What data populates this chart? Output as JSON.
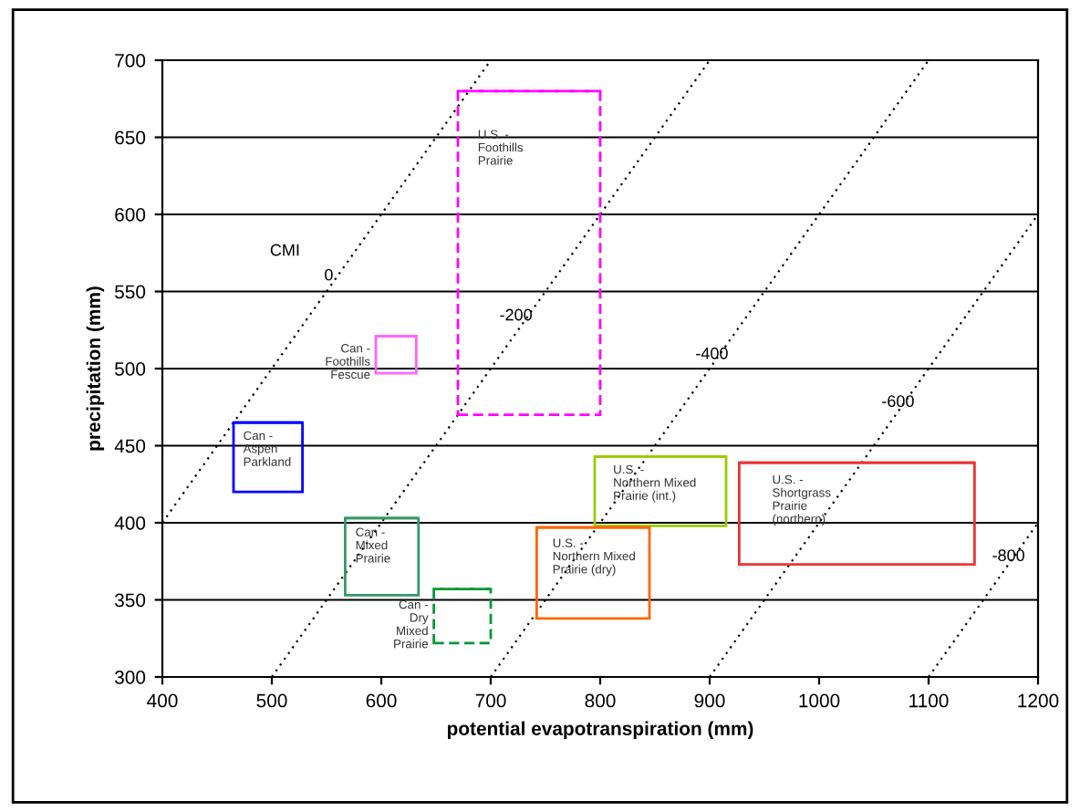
{
  "chart_data": {
    "type": "bar",
    "xlabel": "potential evapotranspiration (mm)",
    "ylabel": "precipitation (mm)",
    "xlim": [
      400,
      1200
    ],
    "xticks": [
      400,
      500,
      600,
      700,
      800,
      900,
      1000,
      1100,
      1200
    ],
    "ylim": [
      300,
      700
    ],
    "yticks": [
      300,
      350,
      400,
      450,
      500,
      550,
      600,
      650,
      700
    ],
    "grid": "y",
    "legend": false,
    "series": [
      {
        "type": "line",
        "color": "#000000",
        "line_style": "dotted",
        "x": [
          400,
          700
        ],
        "values": [
          400,
          700
        ]
      },
      {
        "type": "line",
        "color": "#000000",
        "line_style": "dotted",
        "x": [
          500,
          900
        ],
        "values": [
          300,
          700
        ]
      },
      {
        "type": "line",
        "color": "#000000",
        "line_style": "dotted",
        "x": [
          700,
          1100
        ],
        "values": [
          300,
          700
        ]
      },
      {
        "type": "line",
        "color": "#000000",
        "line_style": "dotted",
        "x": [
          900,
          1200
        ],
        "values": [
          300,
          600
        ]
      },
      {
        "type": "line",
        "color": "#000000",
        "line_style": "dotted",
        "x": [
          1100,
          1200
        ],
        "values": [
          300,
          400
        ]
      },
      {
        "name": "Can -\nAspen\nParkland",
        "color": "#0000ff",
        "line_style": "solid",
        "x": [
          496.5
        ],
        "xerrors": [
          [
            465,
            528
          ]
        ],
        "base": [
          420
        ],
        "values": [
          45
        ]
      },
      {
        "name": "Can -\nFoothills\nFescue",
        "color": "#ff66ff",
        "line_style": "solid",
        "x": [
          613.5
        ],
        "xerrors": [
          [
            595,
            632
          ]
        ],
        "base": [
          497
        ],
        "values": [
          24
        ]
      },
      {
        "name": "U.S. -\nFoothills\nPrairie",
        "color": "#ff00ff",
        "line_style": "dashed",
        "x": [
          735
        ],
        "xerrors": [
          [
            670,
            800
          ]
        ],
        "base": [
          470
        ],
        "values": [
          210
        ]
      },
      {
        "name": "Can -\nMixed\nPrairie",
        "color": "#339966",
        "line_style": "solid",
        "x": [
          600.5
        ],
        "xerrors": [
          [
            567,
            634
          ]
        ],
        "base": [
          353
        ],
        "values": [
          50
        ]
      },
      {
        "name": "Can -\nDry\nMixed\nPrairie",
        "color": "#009933",
        "line_style": "dashed",
        "x": [
          674
        ],
        "xerrors": [
          [
            648,
            700
          ]
        ],
        "base": [
          322
        ],
        "values": [
          35
        ]
      },
      {
        "name": "U.S. -\nNorthern Mixed\nPrairie (int.)",
        "color": "#99cc00",
        "line_style": "solid",
        "x": [
          855
        ],
        "xerrors": [
          [
            795,
            915
          ]
        ],
        "base": [
          398
        ],
        "values": [
          45
        ]
      },
      {
        "name": "U.S. -\nNorthern Mixed\nPrairie (dry)",
        "color": "#ff6600",
        "line_style": "solid",
        "x": [
          793.5
        ],
        "xerrors": [
          [
            742,
            845
          ]
        ],
        "base": [
          338
        ],
        "values": [
          59
        ]
      },
      {
        "name": "U.S. -\nShortgrass\nPrairie\n(northern)",
        "color": "#ee3333",
        "line_style": "solid",
        "x": [
          1034.5
        ],
        "xerrors": [
          [
            927,
            1142
          ]
        ],
        "base": [
          373
        ],
        "values": [
          66
        ]
      }
    ],
    "annotations": [
      "CMI",
      {
        "text": "0",
        "x": 552,
        "y": 560
      },
      {
        "text": "-200",
        "x": 723,
        "y": 534
      },
      {
        "text": "-400",
        "x": 902,
        "y": 509
      },
      {
        "text": "-600",
        "x": 1072,
        "y": 478
      },
      {
        "text": "-800",
        "x": 1173,
        "y": 378
      }
    ]
  }
}
